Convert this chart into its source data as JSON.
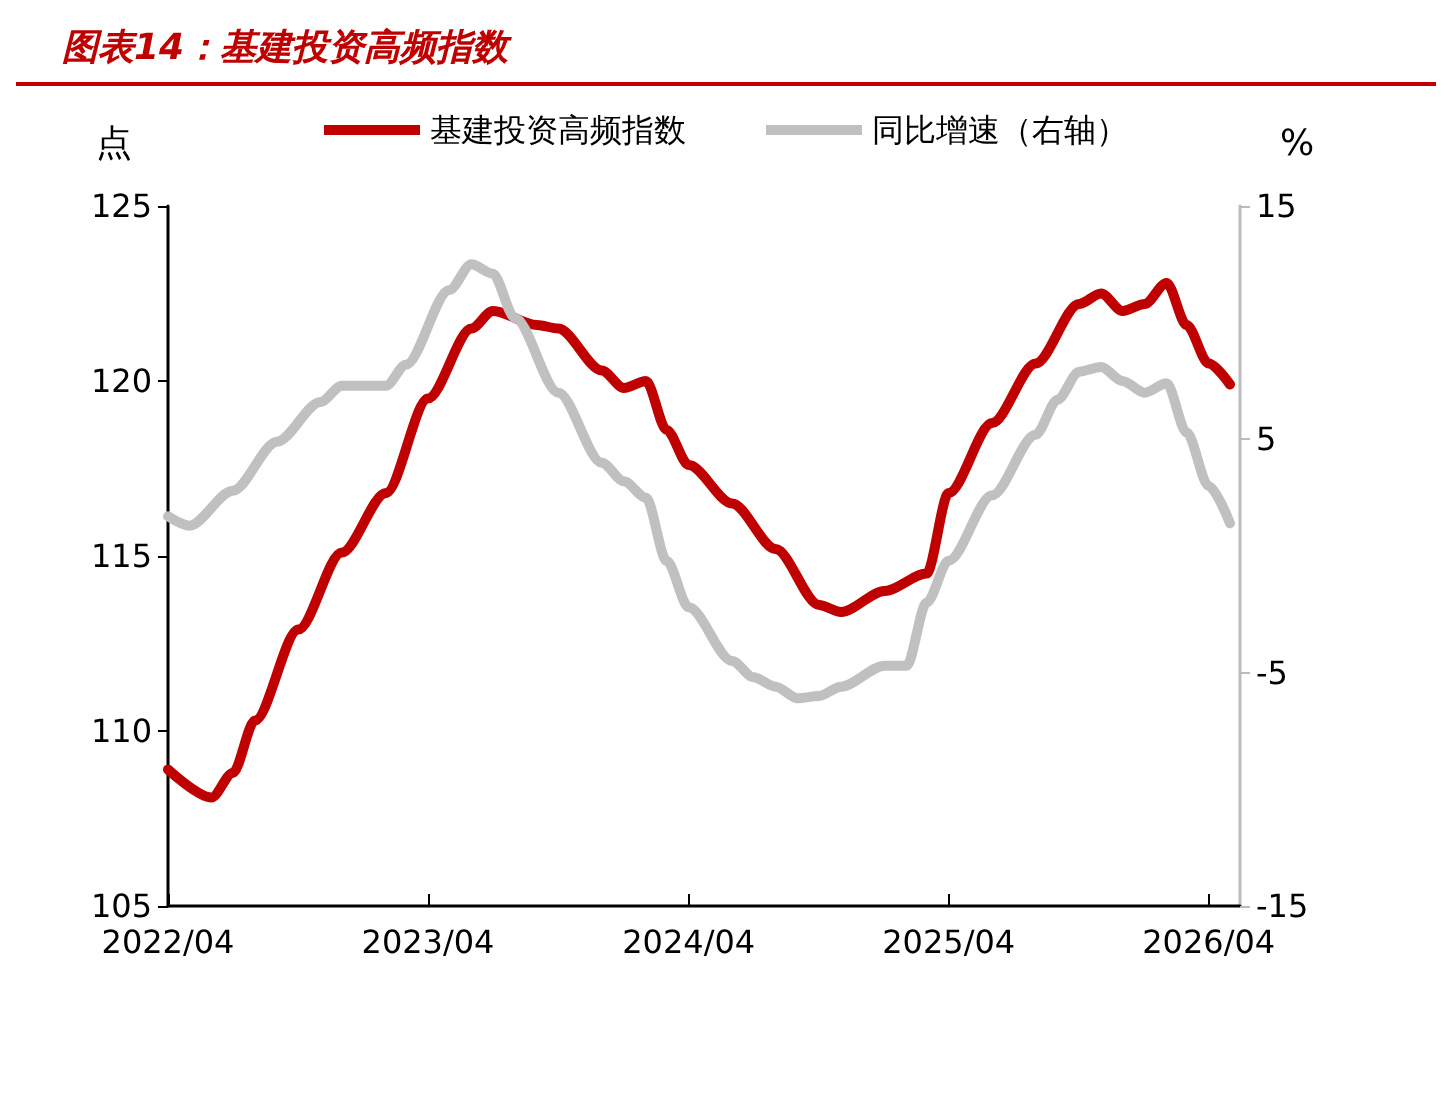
{
  "chart_data": {
    "type": "line",
    "title": "图表14：基建投资高频指数",
    "ylabel": "点",
    "y2label": "%",
    "xlim": [
      "2022-04",
      "2026-05-15"
    ],
    "xticks": [
      {
        "value": "2022-04",
        "label": "2022/04"
      },
      {
        "value": "2023-04",
        "label": "2023/04"
      },
      {
        "value": "2024-04",
        "label": "2024/04"
      },
      {
        "value": "2025-04",
        "label": "2025/04"
      },
      {
        "value": "2026-04",
        "label": "2026/04"
      }
    ],
    "ylim": [
      105,
      125
    ],
    "yticks": [
      105,
      110,
      115,
      120,
      125
    ],
    "y2lim": [
      -15,
      15
    ],
    "y2ticks": [
      -15,
      -5,
      5,
      15
    ],
    "grid": false,
    "legend": "top",
    "marker": "none",
    "line_style": "solid",
    "series": [
      {
        "name": "基建投资高频指数",
        "color": "#c00000",
        "x": [
          "2022-04",
          "2022-06",
          "2022-07",
          "2022-08",
          "2022-10",
          "2022-12",
          "2023-02",
          "2023-04",
          "2023-06",
          "2023-07",
          "2023-09",
          "2023-10",
          "2023-12",
          "2024-01",
          "2024-02",
          "2024-03",
          "2024-04",
          "2024-06",
          "2024-08",
          "2024-10",
          "2024-11",
          "2025-01",
          "2025-03",
          "2025-04",
          "2025-06",
          "2025-08",
          "2025-10",
          "2025-11",
          "2025-12",
          "2026-01",
          "2026-02",
          "2026-03",
          "2026-04",
          "2026-05"
        ],
        "values": [
          108.9,
          108.1,
          108.8,
          110.3,
          112.9,
          115.1,
          116.8,
          119.5,
          121.5,
          122.0,
          121.6,
          121.5,
          120.3,
          119.8,
          120.0,
          118.6,
          117.6,
          116.5,
          115.2,
          113.6,
          113.4,
          114.0,
          114.5,
          116.8,
          118.8,
          120.5,
          122.2,
          122.5,
          122.0,
          122.2,
          122.8,
          121.6,
          120.5,
          119.9
        ]
      },
      {
        "name": "同比增速（右轴）",
        "color": "#c0c0c0",
        "axis": "y2",
        "x": [
          "2022-04",
          "2022-05",
          "2022-07",
          "2022-09",
          "2022-11",
          "2022-12",
          "2023-02",
          "2023-03",
          "2023-05",
          "2023-06",
          "2023-07",
          "2023-08",
          "2023-10",
          "2023-12",
          "2024-01",
          "2024-02",
          "2024-03",
          "2024-04",
          "2024-06",
          "2024-07",
          "2024-08",
          "2024-09",
          "2024-10",
          "2024-11",
          "2025-01",
          "2025-02",
          "2025-03",
          "2025-04",
          "2025-06",
          "2025-08",
          "2025-09",
          "2025-10",
          "2025-11",
          "2025-12",
          "2026-01",
          "2026-02",
          "2026-03",
          "2026-04",
          "2026-05"
        ],
        "values": [
          1.7,
          1.3,
          2.8,
          4.9,
          6.6,
          7.3,
          7.3,
          8.2,
          11.4,
          12.5,
          12.1,
          10.2,
          7.0,
          4.0,
          3.2,
          2.5,
          -0.2,
          -2.2,
          -4.5,
          -5.2,
          -5.6,
          -6.1,
          -6.0,
          -5.6,
          -4.7,
          -4.7,
          -2.0,
          -0.2,
          2.6,
          5.2,
          6.7,
          7.9,
          8.1,
          7.5,
          7.0,
          7.4,
          5.3,
          3.0,
          1.4
        ]
      }
    ]
  }
}
